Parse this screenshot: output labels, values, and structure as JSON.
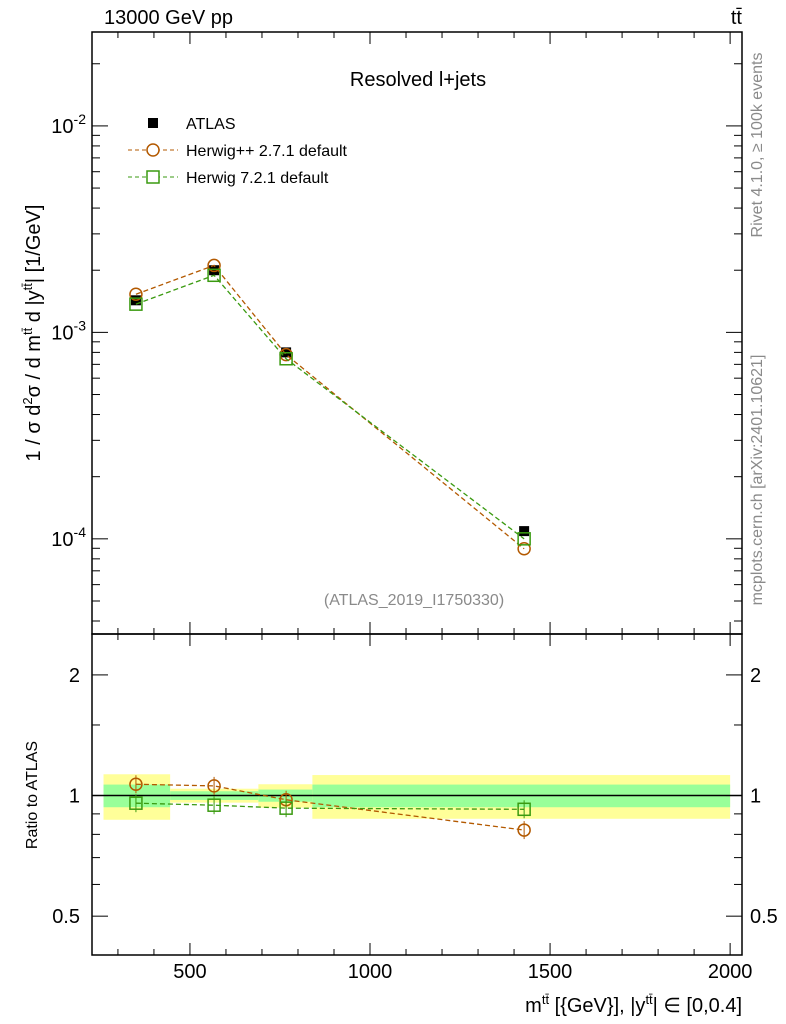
{
  "header": {
    "left": "13000 GeV pp",
    "right": "tt̄"
  },
  "side": {
    "rivet": "Rivet 4.1.0, ≥ 100k events",
    "mcplots": "mcplots.cern.ch [arXiv:2401.10621]"
  },
  "colors": {
    "atlas": "#000000",
    "herwigpp": "#b35900",
    "herwig7": "#3a9a10",
    "band_inner": "#99ff99",
    "band_outer": "#ffff99"
  },
  "chart_data": [
    {
      "type": "line",
      "title": "Resolved l+jets",
      "analysis": "(ATLAS_2019_I1750330)",
      "ylabel_parts": [
        "1 / σ d",
        "2",
        "σ / d m",
        "tt̄",
        " d |y",
        "tt̄",
        "| [1/GeV]"
      ],
      "yscale": "log",
      "ylim": [
        3.46e-05,
        0.0285
      ],
      "xlim": [
        228,
        2033
      ],
      "yticks": [
        {
          "value": 0.01,
          "base": "10",
          "exp": "-2"
        },
        {
          "value": 0.001,
          "base": "10",
          "exp": "-3"
        },
        {
          "value": 0.0001,
          "base": "10",
          "exp": "-4"
        }
      ],
      "legend_position": "top-left",
      "x": [
        350,
        567,
        767,
        1428
      ],
      "series": [
        {
          "name": "ATLAS",
          "marker": "filled-square",
          "values": [
            0.00143,
            0.002,
            0.0008,
            0.000109
          ]
        },
        {
          "name": "Herwig++ 2.7.1 default",
          "marker": "open-circle",
          "values": [
            0.00153,
            0.00211,
            0.00078,
            8.95e-05
          ]
        },
        {
          "name": "Herwig 7.2.1 default",
          "marker": "open-square",
          "values": [
            0.00137,
            0.00189,
            0.000745,
            0.0001
          ]
        }
      ]
    },
    {
      "type": "line",
      "ylabel": "Ratio to ATLAS",
      "xlabel_parts": [
        "m",
        "tt̄",
        " [{GeV}], |y",
        "tt̄",
        "| ∈ [0,0.4]"
      ],
      "yscale": "log",
      "ylim": [
        0.4,
        2.53
      ],
      "xlim": [
        228,
        2033
      ],
      "xticks": [
        500,
        1000,
        1500,
        2000
      ],
      "yticks": [
        "2",
        "1",
        "0.5"
      ],
      "yticks_values": [
        2,
        1,
        0.5
      ],
      "bin_edges": [
        260,
        445,
        690,
        840,
        2000
      ],
      "band_inner": [
        0.065,
        0.025,
        0.035,
        0.065
      ],
      "band_outer": [
        0.13,
        0.04,
        0.067,
        0.125
      ],
      "x": [
        350,
        567,
        767,
        1428
      ],
      "series": [
        {
          "name": "Herwig++ 2.7.1 default",
          "values": [
            1.067,
            1.057,
            0.976,
            0.82
          ]
        },
        {
          "name": "Herwig 7.2.1 default",
          "values": [
            0.957,
            0.946,
            0.93,
            0.924
          ]
        }
      ]
    }
  ]
}
